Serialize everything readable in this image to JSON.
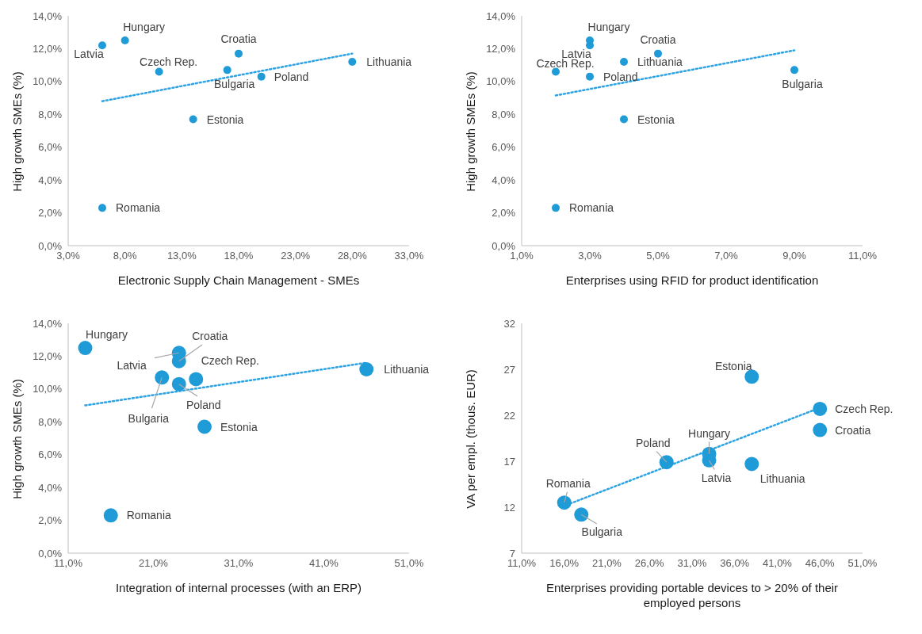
{
  "chart_data": [
    {
      "type": "scatter",
      "xlabel": "Electronic Supply Chain Management - SMEs",
      "ylabel": "High growth SMEs (%)",
      "marker": "circle",
      "xlim": [
        3,
        33
      ],
      "xticks": [
        {
          "value": 3,
          "label": "3,0%"
        },
        {
          "value": 8,
          "label": "8,0%"
        },
        {
          "value": 13,
          "label": "13,0%"
        },
        {
          "value": 18,
          "label": "18,0%"
        },
        {
          "value": 23,
          "label": "23,0%"
        },
        {
          "value": 28,
          "label": "28,0%"
        },
        {
          "value": 33,
          "label": "33,0%"
        }
      ],
      "ylim": [
        0,
        14
      ],
      "yticks": [
        {
          "value": 0,
          "label": "0,0%"
        },
        {
          "value": 2,
          "label": "2,0%"
        },
        {
          "value": 4,
          "label": "4,0%"
        },
        {
          "value": 6,
          "label": "6,0%"
        },
        {
          "value": 8,
          "label": "8,0%"
        },
        {
          "value": 10,
          "label": "10,0%"
        },
        {
          "value": 12,
          "label": "12,0%"
        },
        {
          "value": 14,
          "label": "14,0%"
        }
      ],
      "series": [
        {
          "color": "#1f9bd7",
          "x": [
            6,
            8,
            11,
            18,
            17,
            20,
            28,
            14,
            6
          ],
          "values": [
            12.2,
            12.5,
            10.6,
            11.7,
            10.7,
            10.3,
            11.2,
            7.7,
            2.3
          ]
        },
        {
          "type": "line",
          "color": "#2ea3e3",
          "line_style": "dotted",
          "marker": "none",
          "x": [
            6,
            28
          ],
          "values": [
            8.8,
            11.7
          ]
        }
      ],
      "annotations": [
        {
          "text": "Latvia",
          "x": 6,
          "y": 12.2
        },
        {
          "text": "Hungary",
          "x": 8,
          "y": 12.5
        },
        {
          "text": "Czech Rep.",
          "x": 11,
          "y": 10.6
        },
        {
          "text": "Croatia",
          "x": 18,
          "y": 11.7
        },
        {
          "text": "Bulgaria",
          "x": 17,
          "y": 10.7
        },
        {
          "text": "Poland",
          "x": 20,
          "y": 10.3
        },
        {
          "text": "Lithuania",
          "x": 28,
          "y": 11.2
        },
        {
          "text": "Estonia",
          "x": 14,
          "y": 7.7
        },
        {
          "text": "Romania",
          "x": 6,
          "y": 2.3
        }
      ]
    },
    {
      "type": "scatter",
      "xlabel": "Enterprises using RFID for product identification",
      "ylabel": "High growth SMEs (%)",
      "marker": "circle",
      "xlim": [
        1,
        11
      ],
      "xticks": [
        {
          "value": 1,
          "label": "1,0%"
        },
        {
          "value": 3,
          "label": "3,0%"
        },
        {
          "value": 5,
          "label": "5,0%"
        },
        {
          "value": 7,
          "label": "7,0%"
        },
        {
          "value": 9,
          "label": "9,0%"
        },
        {
          "value": 11,
          "label": "11,0%"
        }
      ],
      "ylim": [
        0,
        14
      ],
      "yticks": [
        {
          "value": 0,
          "label": "0,0%"
        },
        {
          "value": 2,
          "label": "2,0%"
        },
        {
          "value": 4,
          "label": "4,0%"
        },
        {
          "value": 6,
          "label": "6,0%"
        },
        {
          "value": 8,
          "label": "8,0%"
        },
        {
          "value": 10,
          "label": "10,0%"
        },
        {
          "value": 12,
          "label": "12,0%"
        },
        {
          "value": 14,
          "label": "14,0%"
        }
      ],
      "series": [
        {
          "color": "#1f9bd7",
          "x": [
            3,
            3,
            2,
            5,
            9,
            3,
            4,
            4,
            2
          ],
          "values": [
            12.2,
            12.5,
            10.6,
            11.7,
            10.7,
            10.3,
            11.2,
            7.7,
            2.3
          ]
        },
        {
          "type": "line",
          "color": "#2ea3e3",
          "line_style": "dotted",
          "marker": "none",
          "x": [
            2,
            9
          ],
          "values": [
            9.15,
            11.9
          ]
        }
      ],
      "annotations": [
        {
          "text": "Latvia",
          "x": 3,
          "y": 12.2
        },
        {
          "text": "Hungary",
          "x": 3,
          "y": 12.5
        },
        {
          "text": "Czech Rep.",
          "x": 2,
          "y": 10.6
        },
        {
          "text": "Croatia",
          "x": 5,
          "y": 11.7
        },
        {
          "text": "Bulgaria",
          "x": 9,
          "y": 10.7
        },
        {
          "text": "Poland",
          "x": 3,
          "y": 10.3
        },
        {
          "text": "Lithuania",
          "x": 4,
          "y": 11.2
        },
        {
          "text": "Estonia",
          "x": 4,
          "y": 7.7
        },
        {
          "text": "Romania",
          "x": 2,
          "y": 2.3
        }
      ]
    },
    {
      "type": "scatter",
      "xlabel": "Integration of internal processes (with an ERP)",
      "ylabel": "High growth SMEs (%)",
      "marker": "circle",
      "xlim": [
        11,
        51
      ],
      "xticks": [
        {
          "value": 11,
          "label": "11,0%"
        },
        {
          "value": 21,
          "label": "21,0%"
        },
        {
          "value": 31,
          "label": "31,0%"
        },
        {
          "value": 41,
          "label": "41,0%"
        },
        {
          "value": 51,
          "label": "51,0%"
        }
      ],
      "ylim": [
        0,
        14
      ],
      "yticks": [
        {
          "value": 0,
          "label": "0,0%"
        },
        {
          "value": 2,
          "label": "2,0%"
        },
        {
          "value": 4,
          "label": "4,0%"
        },
        {
          "value": 6,
          "label": "6,0%"
        },
        {
          "value": 8,
          "label": "8,0%"
        },
        {
          "value": 10,
          "label": "10,0%"
        },
        {
          "value": 12,
          "label": "12,0%"
        },
        {
          "value": 14,
          "label": "14,0%"
        }
      ],
      "series": [
        {
          "color": "#1f9bd7",
          "x": [
            24,
            13,
            26,
            24,
            22,
            24,
            46,
            27,
            16
          ],
          "values": [
            12.2,
            12.5,
            10.6,
            11.7,
            10.7,
            10.3,
            11.2,
            7.7,
            2.3
          ]
        },
        {
          "type": "line",
          "color": "#2ea3e3",
          "line_style": "dotted",
          "marker": "none",
          "x": [
            13,
            46
          ],
          "values": [
            9.0,
            11.6
          ]
        }
      ],
      "annotations": [
        {
          "text": "Latvia",
          "x": 24,
          "y": 12.2
        },
        {
          "text": "Hungary",
          "x": 13,
          "y": 12.5
        },
        {
          "text": "Czech Rep.",
          "x": 26,
          "y": 10.6
        },
        {
          "text": "Croatia",
          "x": 24,
          "y": 11.7
        },
        {
          "text": "Bulgaria",
          "x": 22,
          "y": 10.7
        },
        {
          "text": "Poland",
          "x": 24,
          "y": 10.3
        },
        {
          "text": "Lithuania",
          "x": 46,
          "y": 11.2
        },
        {
          "text": "Estonia",
          "x": 27,
          "y": 7.7
        },
        {
          "text": "Romania",
          "x": 16,
          "y": 2.3
        }
      ]
    },
    {
      "type": "scatter",
      "xlabel": "Enterprises providing portable devices to > 20% of their employed persons",
      "ylabel": "VA per empl. (thous. EUR)",
      "marker": "circle",
      "xlim": [
        11,
        51
      ],
      "xticks": [
        {
          "value": 11,
          "label": "11,0%"
        },
        {
          "value": 16,
          "label": "16,0%"
        },
        {
          "value": 21,
          "label": "21,0%"
        },
        {
          "value": 26,
          "label": "26,0%"
        },
        {
          "value": 31,
          "label": "31,0%"
        },
        {
          "value": 36,
          "label": "36,0%"
        },
        {
          "value": 41,
          "label": "41,0%"
        },
        {
          "value": 46,
          "label": "46,0%"
        },
        {
          "value": 51,
          "label": "51,0%"
        }
      ],
      "ylim": [
        7,
        32
      ],
      "yticks": [
        7,
        12,
        17,
        22,
        27,
        32
      ],
      "series": [
        {
          "color": "#1f9bd7",
          "x": [
            33,
            33,
            46,
            46,
            18,
            28,
            38,
            38,
            16
          ],
          "values": [
            17.1,
            17.8,
            22.7,
            20.4,
            11.2,
            16.9,
            16.7,
            26.2,
            12.5
          ]
        },
        {
          "type": "line",
          "color": "#2ea3e3",
          "line_style": "dotted",
          "marker": "none",
          "x": [
            16.7,
            45.4
          ],
          "values": [
            12.4,
            22.6
          ]
        }
      ],
      "annotations": [
        {
          "text": "Latvia",
          "x": 33,
          "y": 17.1
        },
        {
          "text": "Hungary",
          "x": 33,
          "y": 17.8
        },
        {
          "text": "Czech Rep.",
          "x": 46,
          "y": 22.7
        },
        {
          "text": "Croatia",
          "x": 46,
          "y": 20.4
        },
        {
          "text": "Bulgaria",
          "x": 18,
          "y": 11.2
        },
        {
          "text": "Poland",
          "x": 28,
          "y": 16.9
        },
        {
          "text": "Lithuania",
          "x": 38,
          "y": 16.7
        },
        {
          "text": "Estonia",
          "x": 38,
          "y": 26.2
        },
        {
          "text": "Romania",
          "x": 16,
          "y": 12.5
        }
      ]
    }
  ]
}
